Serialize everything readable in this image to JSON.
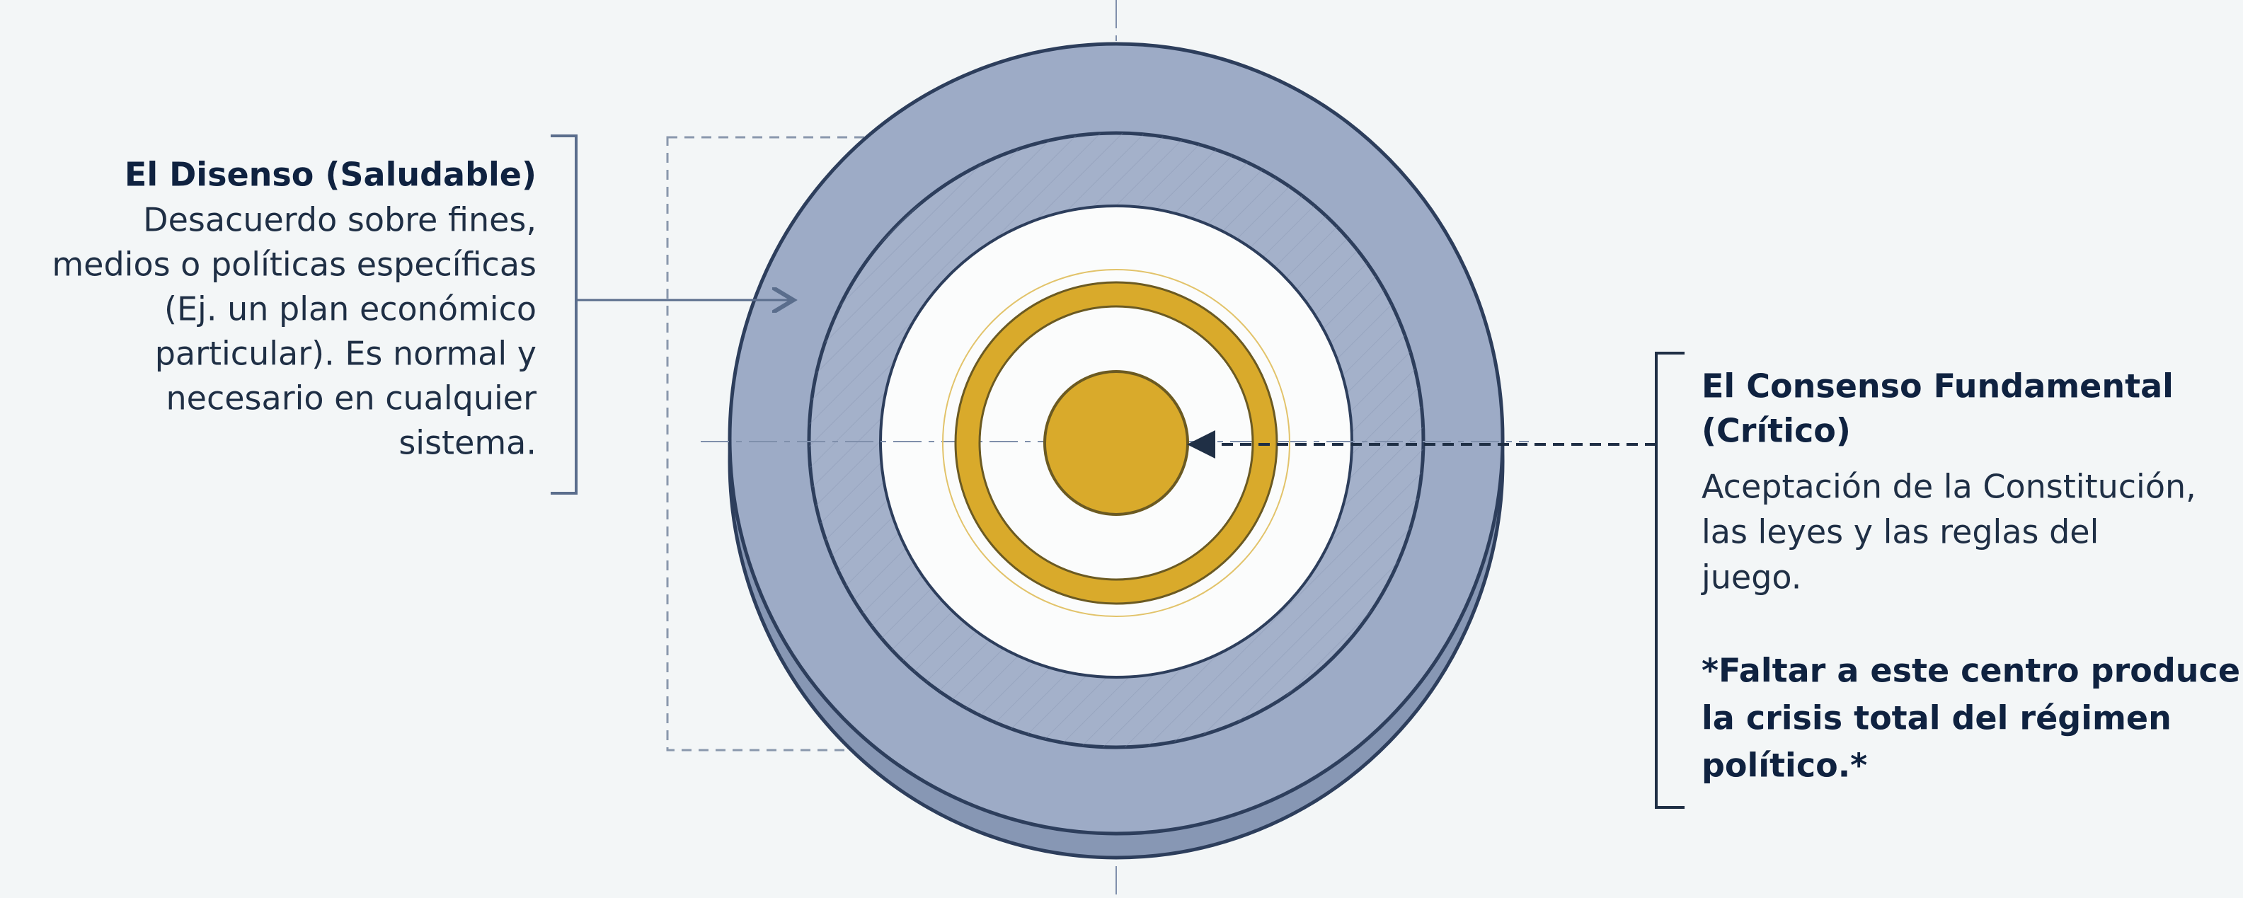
{
  "left_label": {
    "title": "El Disenso (Saludable)",
    "lines": [
      "Desacuerdo sobre fines,",
      "medios o políticas específicas",
      "(Ej. un plan económico",
      "particular). Es normal y",
      "necesario en cualquier",
      "sistema."
    ]
  },
  "right_label": {
    "title_lines": [
      "El Consenso Fundamental",
      "(Crítico)"
    ],
    "body_lines": [
      "Aceptación de la Constitución,",
      "las leyes y las reglas del",
      "juego."
    ],
    "note_lines": [
      "*Faltar a este centro produce",
      "la crisis total del régimen",
      "político.*"
    ]
  }
}
